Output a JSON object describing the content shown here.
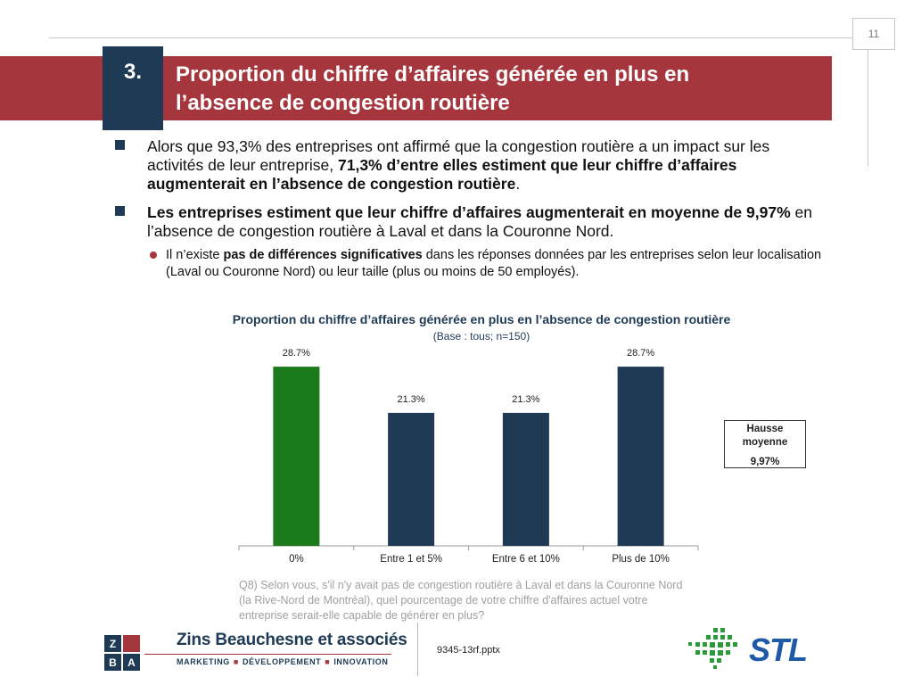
{
  "page_number": "11",
  "section": {
    "number": "3.",
    "title_line1": "Proportion du chiffre d’affaires générée en plus en",
    "title_line2": "l’absence de congestion routière"
  },
  "bullets": [
    {
      "text_a": "Alors que 93,3% des entreprises ont affirmé que la congestion routière a un impact sur les activités de leur entreprise, ",
      "text_bold": "71,3% d’entre elles estiment que leur chiffre d’affaires augmenterait en l’absence de congestion routière",
      "text_c": "."
    },
    {
      "text_bold": "Les entreprises estiment que leur chiffre d’affaires augmenterait en moyenne de 9,97%",
      "text_c": " en l’absence de congestion routière à Laval et dans la Couronne Nord."
    }
  ],
  "sub_bullet": {
    "text_a": "Il n’existe ",
    "text_bold": "pas de différences significatives",
    "text_c": " dans les réponses données par les entreprises selon leur localisation (Laval ou Couronne Nord) ou leur taille (plus ou moins de 50 employés)."
  },
  "chart_data": {
    "type": "bar",
    "title": "Proportion du chiffre d’affaires générée en plus en l’absence de congestion routière",
    "subtitle": "(Base : tous; n=150)",
    "categories": [
      "0%",
      "Entre 1 et 5%",
      "Entre 6 et 10%",
      "Plus de 10%"
    ],
    "values": [
      28.7,
      21.3,
      21.3,
      28.7
    ],
    "value_labels": [
      "28.7%",
      "21.3%",
      "21.3%",
      "28.7%"
    ],
    "bar_colors": [
      "#1b7a1b",
      "#1e3a54",
      "#1e3a54",
      "#1e3a54"
    ],
    "ylim": [
      0,
      30
    ],
    "grid": false,
    "xlabel": "",
    "ylabel": ""
  },
  "average_box": {
    "label_line1": "Hausse",
    "label_line2": "moyenne",
    "value": "9,97%"
  },
  "question": "Q8) Selon vous, s'il n'y avait pas de congestion routière à Laval et dans la Couronne Nord (la Rive-Nord de Montréal), quel pourcentage de votre chiffre d'affaires actuel votre entreprise serait-elle capable de générer en plus?",
  "footer": {
    "file": "9345-13rf.pptx",
    "zba_letters": [
      "Z",
      "B",
      "A"
    ],
    "company": "Zins Beauchesne et associés",
    "tagline": [
      "MARKETING",
      "DÉVELOPPEMENT",
      "INNOVATION"
    ],
    "stl_logo": "STL"
  },
  "colors": {
    "banner": "#a6363d",
    "navy": "#1e3a54",
    "green": "#1b7a1b"
  }
}
